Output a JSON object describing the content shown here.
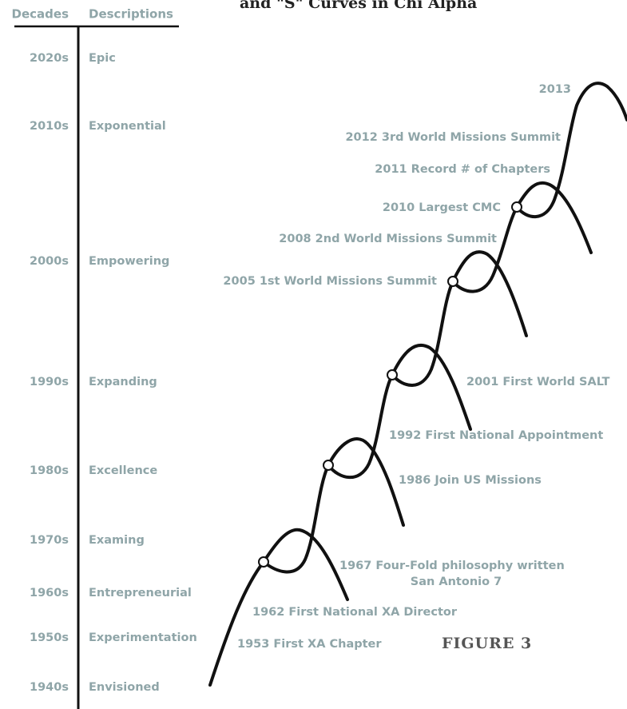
{
  "title": "and \"S\" Curves in Chi Alpha",
  "headers": {
    "decades": "Decades",
    "descriptions": "Descriptions"
  },
  "decades": [
    {
      "decade": "2020s",
      "description": "Epic"
    },
    {
      "decade": "2010s",
      "description": "Exponential"
    },
    {
      "decade": "2000s",
      "description": "Empowering"
    },
    {
      "decade": "1990s",
      "description": "Expanding"
    },
    {
      "decade": "1980s",
      "description": "Excellence"
    },
    {
      "decade": "1970s",
      "description": "Examing"
    },
    {
      "decade": "1960s",
      "description": "Entrepreneurial"
    },
    {
      "decade": "1950s",
      "description": "Experimentation"
    },
    {
      "decade": "1940s",
      "description": "Envisioned"
    }
  ],
  "events": [
    "2013",
    "2012 3rd World Missions Summit",
    "2011 Record # of Chapters",
    "2010 Largest CMC",
    "2008 2nd World Missions Summit",
    "2005 1st World Missions Summit",
    "2001 First World SALT",
    "1992 First National Appointment",
    "1986 Join US Missions",
    "1967 Four-Fold philosophy written",
    "San Antonio 7",
    "1962 First National XA Director",
    "1953 First XA Chapter"
  ],
  "figure_label": "FIGURE 3"
}
